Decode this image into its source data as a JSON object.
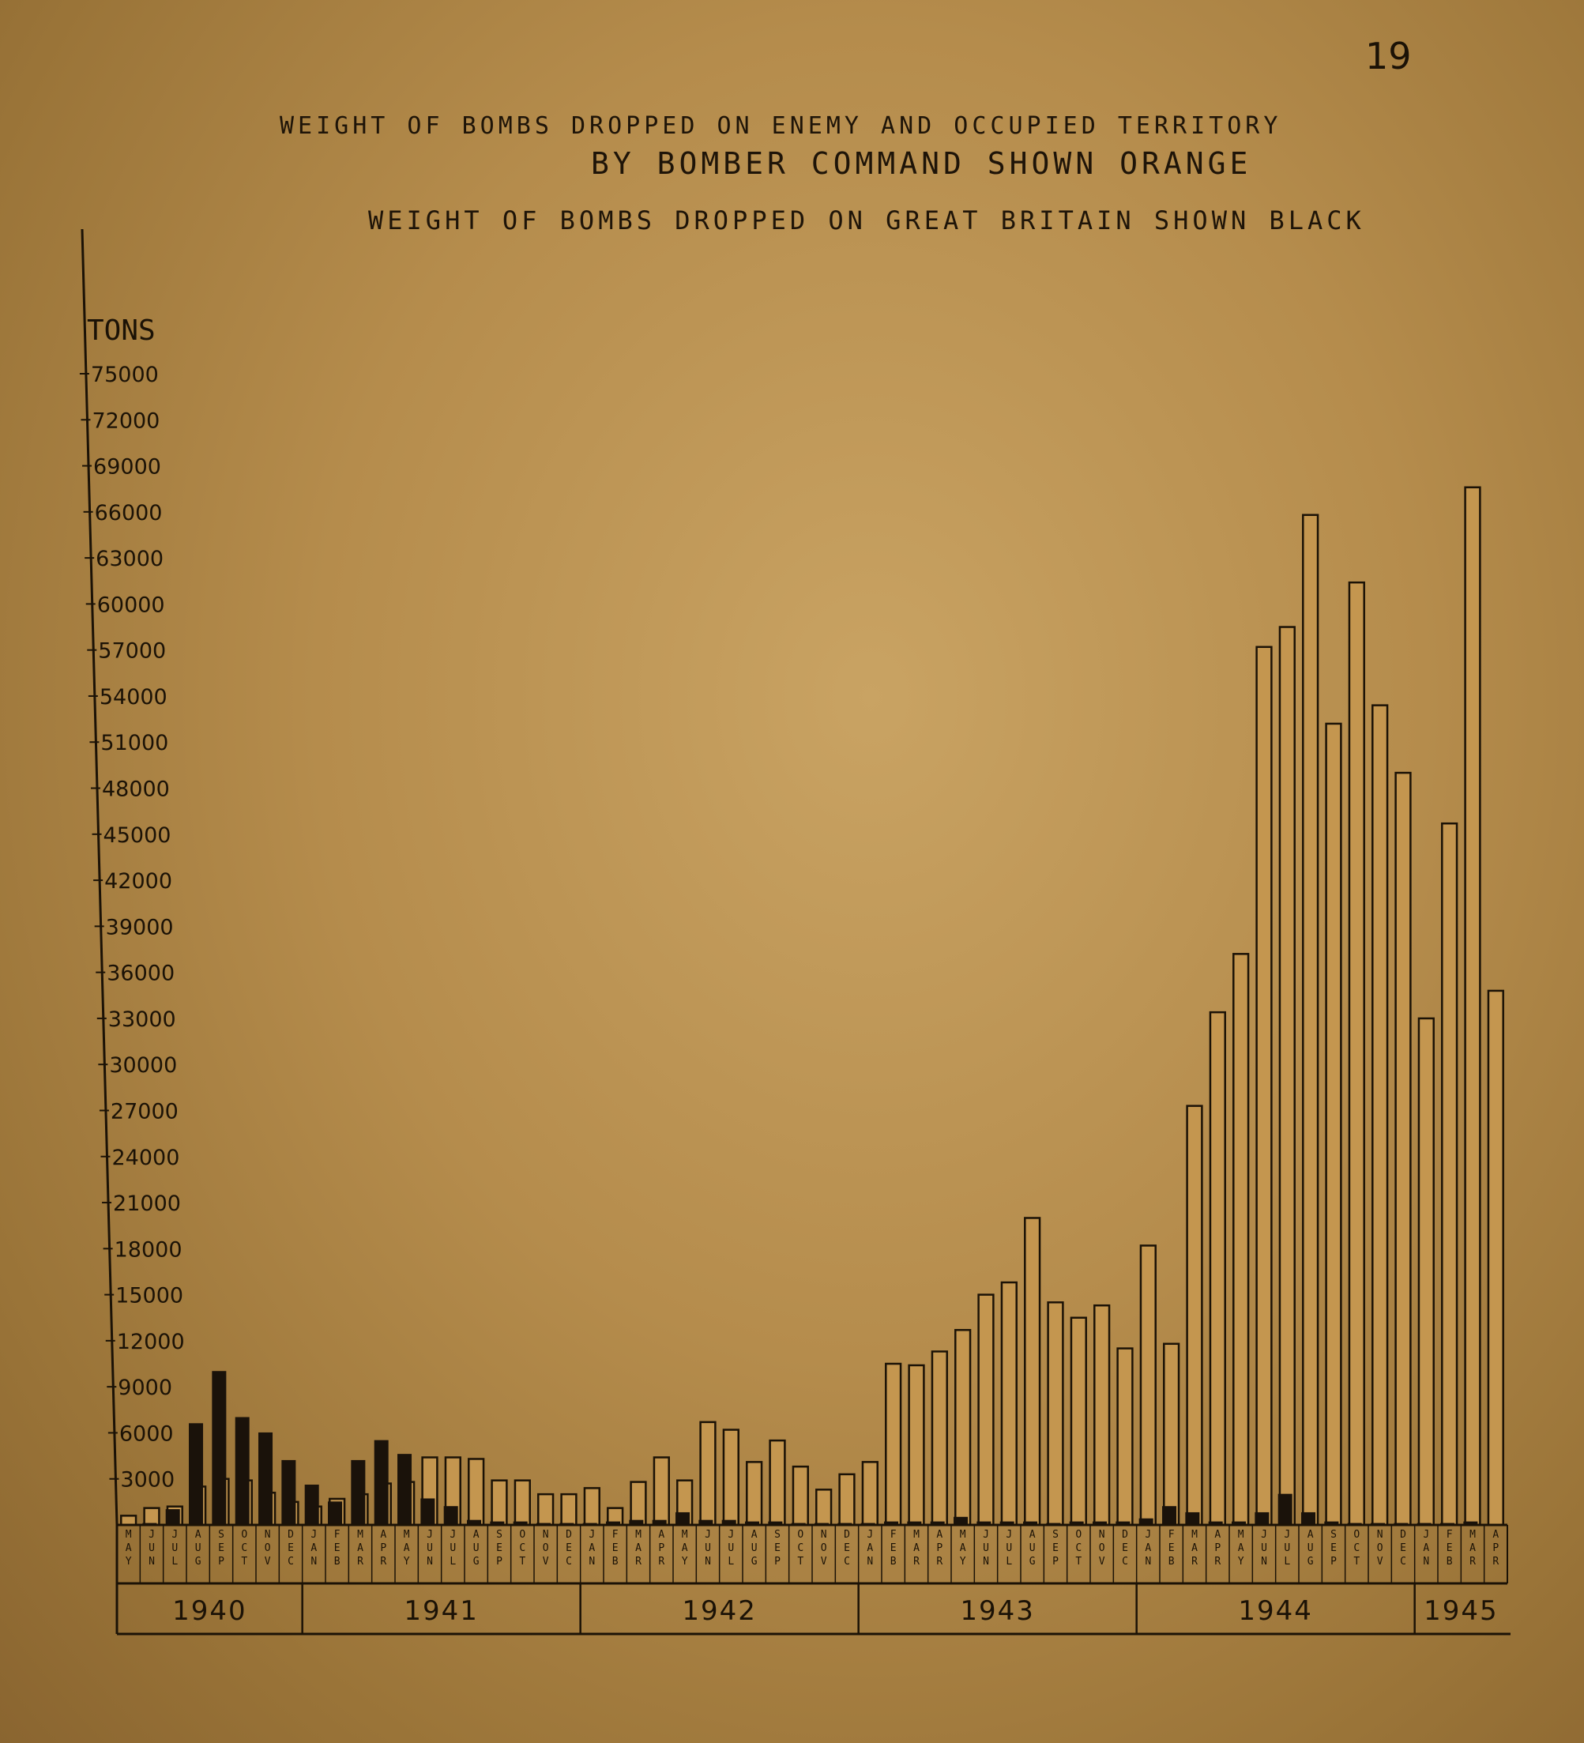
{
  "page_number": "19",
  "title": {
    "line1": "WEIGHT OF BOMBS DROPPED ON ENEMY AND OCCUPIED TERRITORY",
    "line2": "BY BOMBER COMMAND SHOWN ORANGE",
    "line3": "WEIGHT OF BOMBS DROPPED ON GREAT BRITAIN SHOWN BLACK"
  },
  "colors": {
    "orange_bar_fill": "#c4964f",
    "black_bar_fill": "#1a120a",
    "ink": "#1b1206"
  },
  "chart_data": {
    "type": "bar",
    "ylabel": "TONS",
    "ylim": [
      0,
      75000
    ],
    "yticks": [
      "3000",
      "6000",
      "9000",
      "12000",
      "15000",
      "18000",
      "21000",
      "24000",
      "27000",
      "30000",
      "33000",
      "36000",
      "39000",
      "42000",
      "45000",
      "48000",
      "51000",
      "54000",
      "57000",
      "60000",
      "63000",
      "66000",
      "69000",
      "72000",
      "75000"
    ],
    "years": [
      {
        "label": "1940",
        "months": 8
      },
      {
        "label": "1941",
        "months": 12
      },
      {
        "label": "1942",
        "months": 12
      },
      {
        "label": "1943",
        "months": 12
      },
      {
        "label": "1944",
        "months": 12
      },
      {
        "label": "1945",
        "months": 4
      }
    ],
    "categories": [
      "MAY",
      "JUN",
      "JUL",
      "AUG",
      "SEP",
      "OCT",
      "NOV",
      "DEC",
      "JAN",
      "FEB",
      "MAR",
      "APR",
      "MAY",
      "JUN",
      "JUL",
      "AUG",
      "SEP",
      "OCT",
      "NOV",
      "DEC",
      "JAN",
      "FEB",
      "MAR",
      "APR",
      "MAY",
      "JUN",
      "JUL",
      "AUG",
      "SEP",
      "OCT",
      "NOV",
      "DEC",
      "JAN",
      "FEB",
      "MAR",
      "APR",
      "MAY",
      "JUN",
      "JUL",
      "AUG",
      "SEP",
      "OCT",
      "NOV",
      "DEC",
      "JAN",
      "FEB",
      "MAR",
      "APR",
      "MAY",
      "JUN",
      "JUL",
      "AUG",
      "SEP",
      "OCT",
      "NOV",
      "DEC",
      "JAN",
      "FEB",
      "MAR",
      "APR"
    ],
    "series": [
      {
        "name": "BOMBER COMMAND",
        "color": "orange",
        "values": [
          600,
          1100,
          1200,
          2500,
          3000,
          2900,
          2100,
          1500,
          1200,
          1700,
          2000,
          2700,
          2800,
          4400,
          4400,
          4300,
          2900,
          2900,
          2000,
          2000,
          2400,
          1100,
          2800,
          4400,
          2900,
          6700,
          6200,
          4100,
          5500,
          3800,
          2300,
          3300,
          4100,
          10500,
          10400,
          11300,
          12700,
          15000,
          15800,
          20000,
          14500,
          13500,
          14300,
          11500,
          18200,
          11800,
          27300,
          33400,
          37200,
          57200,
          58500,
          65800,
          52200,
          61400,
          53400,
          49000,
          33000,
          45700,
          67600,
          34800
        ]
      },
      {
        "name": "GREAT BRITAIN",
        "color": "black",
        "values": [
          0,
          100,
          1000,
          6600,
          10000,
          7000,
          6000,
          4200,
          2600,
          1500,
          4200,
          5500,
          4600,
          1700,
          1200,
          300,
          200,
          200,
          100,
          100,
          100,
          200,
          300,
          300,
          800,
          300,
          300,
          200,
          200,
          100,
          100,
          100,
          100,
          200,
          200,
          200,
          500,
          200,
          200,
          200,
          100,
          200,
          200,
          200,
          400,
          1200,
          800,
          200,
          200,
          800,
          2000,
          800,
          200,
          100,
          100,
          100,
          100,
          100,
          200,
          0
        ]
      }
    ]
  }
}
